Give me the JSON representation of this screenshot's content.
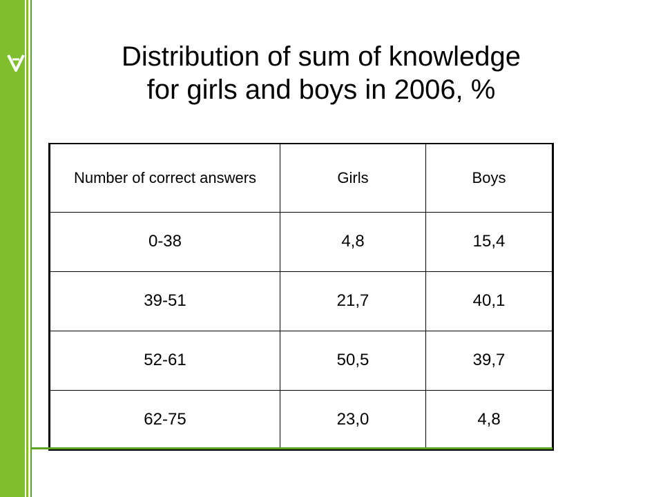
{
  "colors": {
    "sidebar_green": "#78b82a",
    "sidebar_dark": "#3f8a1a",
    "logo_fill": "#ffffff"
  },
  "sidebar": {
    "logo_icon": "leaf-shield-icon"
  },
  "title": {
    "line1": "Distribution of sum of knowledge",
    "line2": "for girls and boys in 2006, %"
  },
  "table": {
    "headers": [
      "Number of correct answers",
      "Girls",
      "Boys"
    ],
    "rows": [
      [
        "0-38",
        "4,8",
        "15,4"
      ],
      [
        "39-51",
        "21,7",
        "40,1"
      ],
      [
        "52-61",
        "50,5",
        "39,7"
      ],
      [
        "62-75",
        "23,0",
        "4,8"
      ]
    ]
  }
}
